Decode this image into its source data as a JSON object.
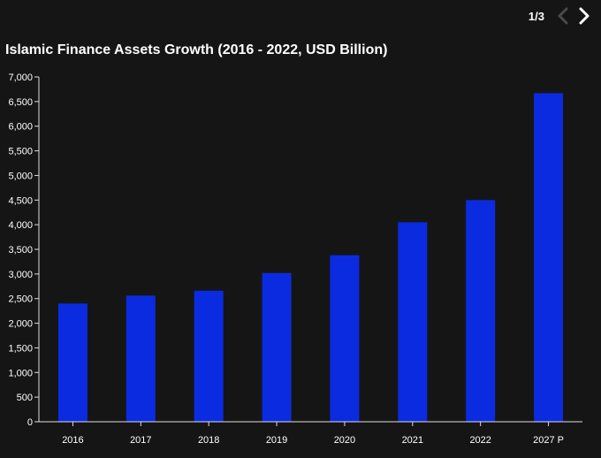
{
  "pager": {
    "current": "1/3"
  },
  "chart_data": {
    "type": "bar",
    "title": "Islamic Finance Assets Growth (2016 - 2022, USD Billion)",
    "categories": [
      "2016",
      "2017",
      "2018",
      "2019",
      "2020",
      "2021",
      "2022",
      "2027 P"
    ],
    "values": [
      2400,
      2560,
      2660,
      3020,
      3380,
      4050,
      4500,
      6670
    ],
    "ylim": [
      0,
      7000
    ],
    "yticks": [
      0,
      500,
      1000,
      1500,
      2000,
      2500,
      3000,
      3500,
      4000,
      4500,
      5000,
      5500,
      6000,
      6500,
      7000
    ],
    "ytick_labels": [
      "0",
      "500",
      "1,000",
      "1,500",
      "2,000",
      "2,500",
      "3,000",
      "3,500",
      "4,000",
      "4,500",
      "5,000",
      "5,500",
      "6,000",
      "6,500",
      "7,000"
    ],
    "xlabel": "",
    "ylabel": "",
    "grid": false,
    "legend": "none",
    "bar_color": "#0b2be0",
    "axis_color": "#dddddd"
  }
}
